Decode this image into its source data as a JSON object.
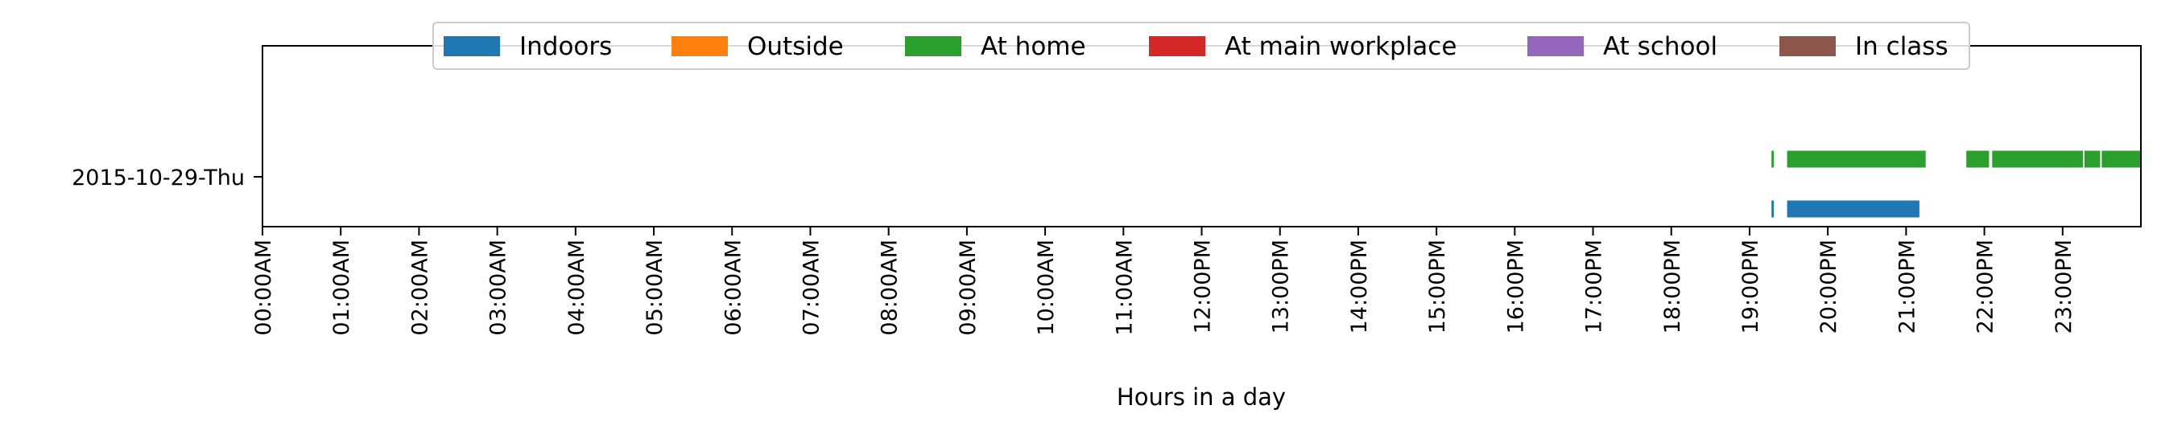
{
  "chart_data": {
    "type": "timeline",
    "title": "",
    "xlabel": "Hours in a day",
    "ylabel": "",
    "xlim": [
      0,
      24
    ],
    "x_tick_labels": [
      "00:00AM",
      "01:00AM",
      "02:00AM",
      "03:00AM",
      "04:00AM",
      "05:00AM",
      "06:00AM",
      "07:00AM",
      "08:00AM",
      "09:00AM",
      "10:00AM",
      "11:00AM",
      "12:00PM",
      "13:00PM",
      "14:00PM",
      "15:00PM",
      "16:00PM",
      "17:00PM",
      "18:00PM",
      "19:00PM",
      "20:00PM",
      "21:00PM",
      "22:00PM",
      "23:00PM"
    ],
    "y_categories": [
      "2015-10-29-Thu"
    ],
    "legend": {
      "placement": "top-center",
      "entries": [
        {
          "name": "Indoors",
          "color": "#1f77b4"
        },
        {
          "name": "Outside",
          "color": "#ff7f0e"
        },
        {
          "name": "At home",
          "color": "#2ca02c"
        },
        {
          "name": "At main workplace",
          "color": "#d62728"
        },
        {
          "name": "At school",
          "color": "#9467bd"
        },
        {
          "name": "In class",
          "color": "#8c564b"
        }
      ]
    },
    "grid": false,
    "series": [
      {
        "name": "Indoors",
        "day": "2015-10-29-Thu",
        "intervals": [
          [
            19.28,
            19.31
          ],
          [
            19.48,
            21.17
          ]
        ]
      },
      {
        "name": "At home",
        "day": "2015-10-29-Thu",
        "intervals": [
          [
            19.28,
            19.31
          ],
          [
            19.48,
            21.25
          ],
          [
            21.77,
            22.06
          ],
          [
            22.1,
            23.26
          ],
          [
            23.28,
            23.48
          ],
          [
            23.5,
            24.0
          ]
        ]
      }
    ]
  }
}
